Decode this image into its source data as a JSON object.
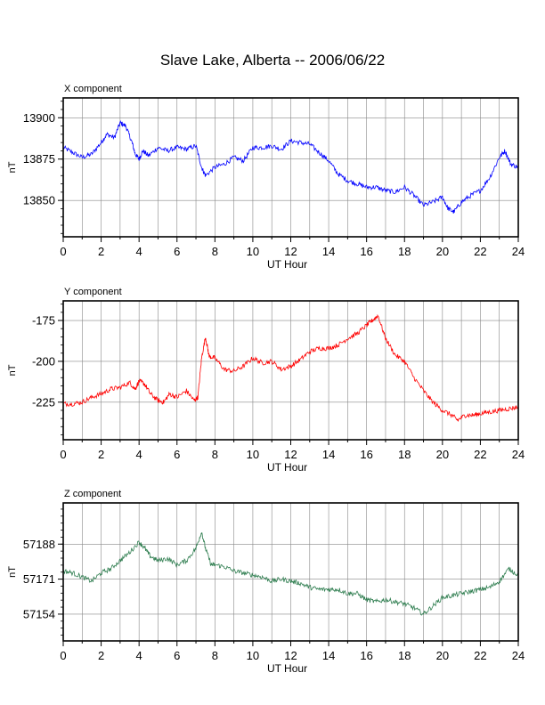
{
  "page_title": "Slave Lake, Alberta -- 2006/06/22",
  "chart_data": [
    {
      "type": "line",
      "title": "X component",
      "xlabel": "UT Hour",
      "ylabel": "nT",
      "xlim": [
        0,
        24
      ],
      "ylim": [
        13828,
        13912
      ],
      "xticks": [
        0,
        2,
        4,
        6,
        8,
        10,
        12,
        14,
        16,
        18,
        20,
        22,
        24
      ],
      "yticks": [
        13850,
        13875,
        13900
      ],
      "grid": true,
      "color": "#0000ff",
      "series": [
        {
          "x": [
            0,
            0.5,
            1,
            1.5,
            2,
            2.3,
            2.7,
            3,
            3.3,
            3.6,
            3.8,
            4,
            4.2,
            4.5,
            5,
            5.5,
            6,
            6.5,
            7,
            7.3,
            7.5,
            8,
            8.5,
            9,
            9.5,
            10,
            10.5,
            11,
            11.5,
            12,
            12.5,
            13,
            13.5,
            14,
            14.5,
            15,
            15.5,
            16,
            16.5,
            17,
            17.5,
            18,
            18.5,
            19,
            19.5,
            20,
            20.3,
            20.6,
            21,
            21.5,
            22,
            22.5,
            23,
            23.3,
            23.6,
            24
          ],
          "values": [
            13882,
            13879,
            13876,
            13878,
            13885,
            13890,
            13888,
            13897,
            13895,
            13886,
            13878,
            13875,
            13880,
            13877,
            13882,
            13880,
            13882,
            13881,
            13883,
            13870,
            13865,
            13870,
            13872,
            13876,
            13874,
            13882,
            13882,
            13883,
            13881,
            13886,
            13885,
            13884,
            13879,
            13874,
            13866,
            13862,
            13860,
            13858,
            13858,
            13856,
            13855,
            13858,
            13853,
            13847,
            13849,
            13852,
            13845,
            13843,
            13849,
            13853,
            13856,
            13864,
            13876,
            13880,
            13872,
            13870
          ]
        }
      ]
    },
    {
      "type": "line",
      "title": "Y component",
      "xlabel": "UT Hour",
      "ylabel": "nT",
      "xlim": [
        0,
        24
      ],
      "ylim": [
        -248,
        -163
      ],
      "xticks": [
        0,
        2,
        4,
        6,
        8,
        10,
        12,
        14,
        16,
        18,
        20,
        22,
        24
      ],
      "yticks": [
        -225,
        -200,
        -175
      ],
      "grid": true,
      "color": "#ff0000",
      "series": [
        {
          "x": [
            0,
            0.5,
            1,
            1.5,
            2,
            2.5,
            3,
            3.5,
            3.8,
            4,
            4.3,
            4.6,
            5,
            5.3,
            5.6,
            6,
            6.5,
            6.9,
            7.1,
            7.3,
            7.5,
            7.7,
            8,
            8.5,
            9,
            9.5,
            10,
            10.5,
            11,
            11.5,
            12,
            12.5,
            13,
            13.5,
            14,
            14.5,
            15,
            15.5,
            16,
            16.3,
            16.6,
            17,
            17.5,
            18,
            18.5,
            19,
            19.5,
            20,
            20.5,
            20.8,
            21.2,
            21.6,
            22,
            22.5,
            23,
            23.5,
            24
          ],
          "values": [
            -226,
            -226,
            -225,
            -222,
            -220,
            -217,
            -216,
            -213,
            -217,
            -212,
            -214,
            -220,
            -224,
            -225,
            -220,
            -222,
            -218,
            -224,
            -222,
            -198,
            -185,
            -197,
            -198,
            -205,
            -206,
            -203,
            -198,
            -201,
            -200,
            -205,
            -203,
            -199,
            -194,
            -192,
            -192,
            -190,
            -186,
            -183,
            -178,
            -175,
            -172,
            -186,
            -196,
            -200,
            -210,
            -218,
            -225,
            -230,
            -233,
            -236,
            -233,
            -233,
            -232,
            -231,
            -230,
            -229,
            -228
          ]
        }
      ]
    },
    {
      "type": "line",
      "title": "Z component",
      "xlabel": "UT Hour",
      "ylabel": "nT",
      "xlim": [
        0,
        24
      ],
      "ylim": [
        57141,
        57208
      ],
      "xticks": [
        0,
        2,
        4,
        6,
        8,
        10,
        12,
        14,
        16,
        18,
        20,
        22,
        24
      ],
      "yticks": [
        57154,
        57171,
        57188
      ],
      "grid": true,
      "color": "#2e7d4f",
      "series": [
        {
          "x": [
            0,
            0.5,
            1,
            1.5,
            2,
            2.5,
            3,
            3.5,
            4,
            4.3,
            4.6,
            5,
            5.5,
            6,
            6.5,
            7,
            7.3,
            7.5,
            7.8,
            8,
            8.5,
            9,
            9.5,
            10,
            10.5,
            11,
            11.5,
            12,
            12.5,
            13,
            13.5,
            14,
            14.5,
            15,
            15.5,
            16,
            16.5,
            17,
            17.5,
            18,
            18.5,
            19,
            19.5,
            20,
            20.5,
            21,
            21.5,
            22,
            22.5,
            23,
            23.5,
            24
          ],
          "values": [
            57175,
            57174,
            57172,
            57170,
            57174,
            57176,
            57180,
            57184,
            57189,
            57186,
            57182,
            57180,
            57181,
            57178,
            57180,
            57186,
            57194,
            57186,
            57178,
            57178,
            57177,
            57175,
            57174,
            57173,
            57172,
            57170,
            57171,
            57170,
            57169,
            57167,
            57166,
            57166,
            57166,
            57164,
            57164,
            57161,
            57160,
            57161,
            57160,
            57159,
            57157,
            57154,
            57158,
            57162,
            57163,
            57164,
            57165,
            57166,
            57167,
            57170,
            57176,
            57173
          ]
        }
      ]
    }
  ]
}
